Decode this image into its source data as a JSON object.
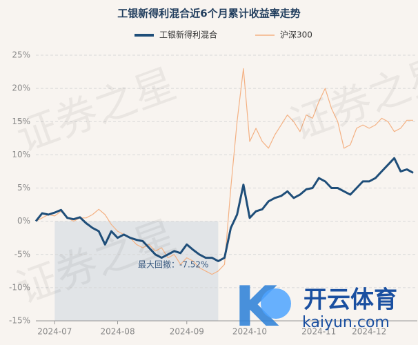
{
  "chart_data": {
    "type": "line",
    "title": "工银新得利混合近6个月累计收益率走势",
    "annotation": "最大回撤：-7.52%",
    "watermark": "证券之星",
    "logo": {
      "title": "开云体育",
      "url": "kaiyun.com"
    },
    "categories": [
      null,
      null,
      null,
      "2024-07",
      null,
      null,
      null,
      null,
      null,
      null,
      null,
      null,
      null,
      "2024-08",
      null,
      null,
      null,
      null,
      null,
      null,
      null,
      null,
      null,
      null,
      "2024-09",
      null,
      null,
      null,
      null,
      null,
      null,
      null,
      null,
      null,
      "2024-10",
      null,
      null,
      null,
      null,
      null,
      null,
      null,
      null,
      null,
      null,
      "2024-11",
      null,
      null,
      null,
      null,
      null,
      null,
      null,
      "2024-12",
      null,
      null,
      null,
      null,
      null,
      null,
      null
    ],
    "series": [
      {
        "name": "工银新得利混合",
        "color": "#1f4e79",
        "values": [
          0,
          1.2,
          1.0,
          1.3,
          1.7,
          0.5,
          0.3,
          0.6,
          -0.3,
          -1.0,
          -1.5,
          -3.5,
          -1.5,
          -2.5,
          -2.0,
          -2.5,
          -2.8,
          -3.0,
          -4.0,
          -5.0,
          -5.5,
          -5.0,
          -4.5,
          -4.8,
          -3.5,
          -4.3,
          -5.0,
          -5.5,
          -5.5,
          -6.0,
          -5.5,
          -1.0,
          1.0,
          5.5,
          0.5,
          1.5,
          1.8,
          3.0,
          3.5,
          3.8,
          4.5,
          3.5,
          4.0,
          4.8,
          5.0,
          6.5,
          6.0,
          5.0,
          5.0,
          4.5,
          4.0,
          5.0,
          6.0,
          6.0,
          6.5,
          7.5,
          8.5,
          9.5,
          7.5,
          7.8,
          7.3
        ]
      },
      {
        "name": "沪深300",
        "color": "#f4b183",
        "values": [
          0,
          0.5,
          1.0,
          0.8,
          1.5,
          0.5,
          0,
          0.5,
          0.5,
          1.0,
          1.8,
          1.0,
          -0.5,
          -1.5,
          -2.0,
          -2.5,
          -3.5,
          -4.0,
          -3.5,
          -4.5,
          -4.0,
          -5.5,
          -5.0,
          -6.5,
          -5.5,
          -6.0,
          -7.0,
          -7.5,
          -8.0,
          -7.5,
          -6.5,
          5.0,
          15.0,
          23.0,
          12.0,
          14.0,
          12.0,
          11.0,
          13.0,
          14.5,
          16.0,
          15.0,
          13.5,
          16.0,
          15.5,
          18.0,
          20.0,
          17.0,
          15.0,
          11.0,
          11.5,
          14.0,
          14.5,
          14.0,
          14.5,
          15.5,
          15.0,
          13.5,
          14.0,
          15.2,
          15.2
        ]
      }
    ],
    "ylim": [
      -15,
      25
    ],
    "yticks": [
      {
        "value": -15,
        "label": "-15%"
      },
      {
        "value": -10,
        "label": "-10%"
      },
      {
        "value": -5,
        "label": "-5%"
      },
      {
        "value": 0,
        "label": "0%"
      },
      {
        "value": 5,
        "label": "5%"
      },
      {
        "value": 10,
        "label": "10%"
      },
      {
        "value": 15,
        "label": "15%"
      },
      {
        "value": 20,
        "label": "20%"
      },
      {
        "value": 25,
        "label": "25%"
      }
    ],
    "grid": true
  }
}
